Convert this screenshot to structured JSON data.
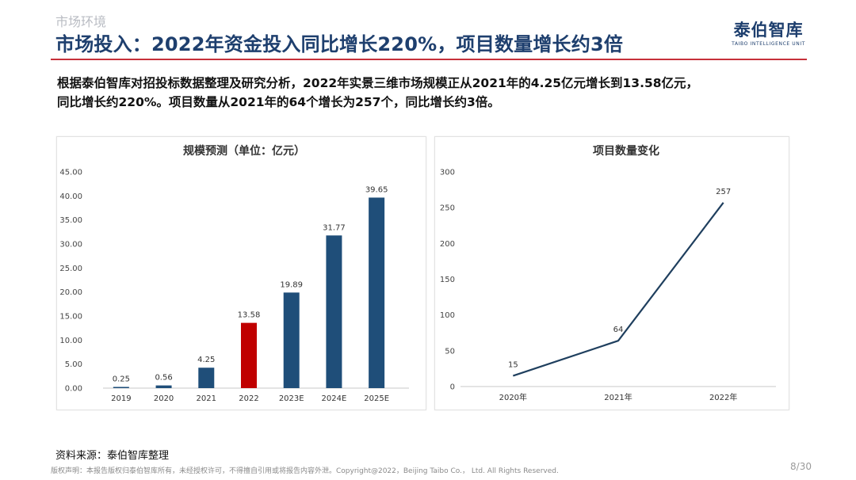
{
  "header": {
    "section": "市场环境",
    "title": "市场投入：2022年资金投入同比增长220%，项目数量增长约3倍",
    "brand_cn": "泰伯智库",
    "brand_en": "TAIBO INTELLIGENCE UNIT"
  },
  "summary": {
    "line1": "根据泰伯智库对招投标数据整理及研究分析，2022年实景三维市场规模正从2021年的4.25亿元增长到13.58亿元，",
    "line2": "同比增长约220%。项目数量从2021年的64个增长为257个，同比增长约3倍。"
  },
  "chart_data": [
    {
      "type": "bar",
      "title": "规模预测（单位：亿元）",
      "categories": [
        "2019",
        "2020",
        "2021",
        "2022",
        "2023E",
        "2024E",
        "2025E"
      ],
      "values": [
        0.25,
        0.56,
        4.25,
        13.58,
        19.89,
        31.77,
        39.65
      ],
      "value_labels": [
        "0.25",
        "0.56",
        "4.25",
        "13.58",
        "19.89",
        "31.77",
        "39.65"
      ],
      "highlight_index": 3,
      "yticks": [
        "0.00",
        "5.00",
        "10.00",
        "15.00",
        "20.00",
        "25.00",
        "30.00",
        "35.00",
        "40.00",
        "45.00"
      ],
      "ylim": [
        0,
        45
      ],
      "colors": {
        "bar": "#1f4e79",
        "highlight": "#c00000"
      },
      "grid": false
    },
    {
      "type": "line",
      "title": "项目数量变化",
      "categories": [
        "2020年",
        "2021年",
        "2022年"
      ],
      "values": [
        15,
        64,
        257
      ],
      "value_labels": [
        "15",
        "64",
        "257"
      ],
      "yticks": [
        "0",
        "50",
        "100",
        "150",
        "200",
        "250",
        "300"
      ],
      "ylim": [
        0,
        300
      ],
      "colors": {
        "line": "#1f3f5e"
      },
      "grid": false
    }
  ],
  "footer": {
    "source": "资料来源：泰伯智库整理",
    "copyright": "版权声明：本报告版权归泰伯智库所有，未经授权许可，不得擅自引用或将报告内容外泄。Copyright@2022，Beijing Taibo Co.， Ltd. All Rights Reserved.",
    "page": "8/30"
  }
}
